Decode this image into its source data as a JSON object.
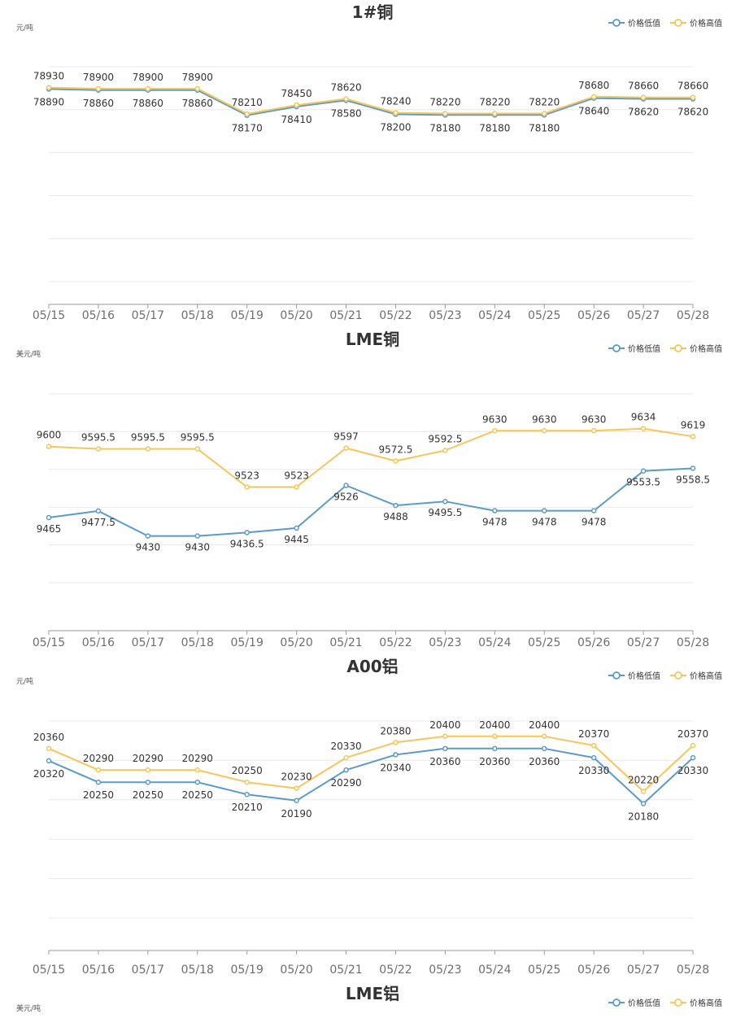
{
  "legend": {
    "low": {
      "label": "价格低值",
      "color": "#5b9bc8"
    },
    "high": {
      "label": "价格高值",
      "color": "#f5c659"
    }
  },
  "chart_data": [
    {
      "type": "line",
      "title": "1#铜",
      "unit_label": "元/吨",
      "categories": [
        "05/15",
        "05/16",
        "05/17",
        "05/18",
        "05/19",
        "05/20",
        "05/21",
        "05/22",
        "05/23",
        "05/24",
        "05/25",
        "05/26",
        "05/27",
        "05/28"
      ],
      "ylim": [
        73000,
        79500
      ],
      "grid": true,
      "legend_position": "top-right",
      "series": [
        {
          "name": "价格低值",
          "color": "#5b9bc8",
          "values": [
            78890,
            78860,
            78860,
            78860,
            78170,
            78410,
            78580,
            78200,
            78180,
            78180,
            78180,
            78640,
            78620,
            78620
          ]
        },
        {
          "name": "价格高值",
          "color": "#f5c659",
          "values": [
            78930,
            78900,
            78900,
            78900,
            78210,
            78450,
            78620,
            78240,
            78220,
            78220,
            78220,
            78680,
            78660,
            78660
          ]
        }
      ]
    },
    {
      "type": "line",
      "title": "LME铜",
      "unit_label": "美元/吨",
      "categories": [
        "05/15",
        "05/16",
        "05/17",
        "05/18",
        "05/19",
        "05/20",
        "05/21",
        "05/22",
        "05/23",
        "05/24",
        "05/25",
        "05/26",
        "05/27",
        "05/28"
      ],
      "ylim": [
        9250,
        9700
      ],
      "grid": true,
      "legend_position": "top-right",
      "series": [
        {
          "name": "价格低值",
          "color": "#5b9bc8",
          "values": [
            9465,
            9477.5,
            9430,
            9430,
            9436.5,
            9445,
            9526,
            9488,
            9495.5,
            9478,
            9478,
            9478,
            9553.5,
            9558.5
          ]
        },
        {
          "name": "价格高值",
          "color": "#f5c659",
          "values": [
            9600,
            9595.5,
            9595.5,
            9595.5,
            9523,
            9523,
            9597,
            9572.5,
            9592.5,
            9630,
            9630,
            9630,
            9634,
            9619
          ]
        }
      ]
    },
    {
      "type": "line",
      "title": "A00铝",
      "unit_label": "元/吨",
      "categories": [
        "05/15",
        "05/16",
        "05/17",
        "05/18",
        "05/19",
        "05/20",
        "05/21",
        "05/22",
        "05/23",
        "05/24",
        "05/25",
        "05/26",
        "05/27",
        "05/28"
      ],
      "ylim": [
        19700,
        20450
      ],
      "grid": true,
      "legend_position": "top-right",
      "series": [
        {
          "name": "价格低值",
          "color": "#5b9bc8",
          "values": [
            20320,
            20250,
            20250,
            20250,
            20210,
            20190,
            20290,
            20340,
            20360,
            20360,
            20360,
            20330,
            20180,
            20330
          ]
        },
        {
          "name": "价格高值",
          "color": "#f5c659",
          "values": [
            20360,
            20290,
            20290,
            20290,
            20250,
            20230,
            20330,
            20380,
            20400,
            20400,
            20400,
            20370,
            20220,
            20370
          ]
        }
      ]
    },
    {
      "type": "line",
      "title": "LME铝",
      "unit_label": "美元/吨",
      "legend_position": "top-right",
      "series": [
        {
          "name": "价格低值",
          "color": "#5b9bc8"
        },
        {
          "name": "价格高值",
          "color": "#f5c659"
        }
      ]
    }
  ]
}
